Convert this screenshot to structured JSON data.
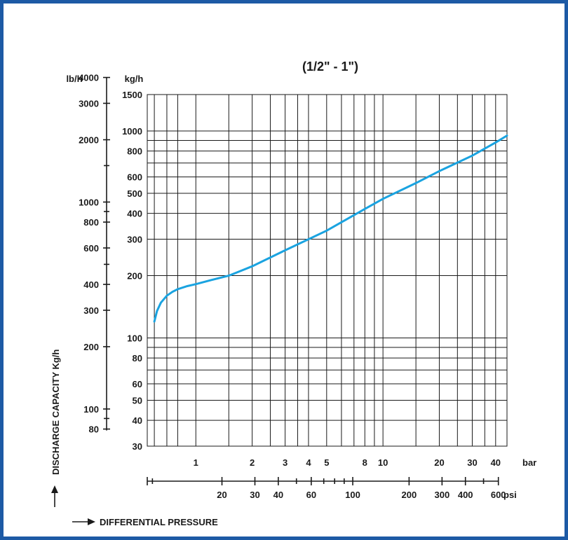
{
  "chart_data": {
    "type": "line",
    "title": "(1/2\" - 1\")",
    "ylabel": "DISCHARGE CAPACITY Kg/h",
    "xlabel": "DIFFERENTIAL PRESSURE",
    "y_unit_kg": "kg/h",
    "y_unit_lb": "lb/h",
    "x_unit_bar": "bar",
    "x_unit_psi": "psi",
    "x_scale": "log",
    "y_scale": "log",
    "xlim_bar": [
      0.55,
      46
    ],
    "ylim_kg": [
      30,
      1500
    ],
    "kg_ticks": [
      30,
      40,
      50,
      60,
      80,
      100,
      200,
      300,
      400,
      500,
      600,
      800,
      1000,
      1500
    ],
    "kg_tick_labels": [
      "30",
      "40",
      "50",
      "60",
      "80",
      "100",
      "200",
      "300",
      "400",
      "500",
      "600",
      "800",
      "1000",
      "1500"
    ],
    "kg_minor_lines": [
      70,
      90,
      700,
      900
    ],
    "lb_ticks": [
      80,
      100,
      200,
      300,
      400,
      600,
      800,
      1000,
      2000,
      3000,
      4000
    ],
    "lb_tick_labels": [
      "80",
      "100",
      "200",
      "300",
      "400",
      "600",
      "800",
      "1000",
      "2000",
      "3000",
      "4000"
    ],
    "lb_minor_ticks": [
      90,
      500,
      900,
      1500
    ],
    "bar_ticks": [
      1,
      2,
      3,
      4,
      5,
      8,
      10,
      20,
      30,
      40
    ],
    "bar_tick_labels": [
      "1",
      "2",
      "3",
      "4",
      "5",
      "8",
      "10",
      "20",
      "30",
      "40"
    ],
    "bar_grid_lines": [
      0.6,
      0.7,
      0.8,
      1,
      1.5,
      2,
      2.5,
      3,
      3.5,
      4,
      5,
      6,
      7,
      8,
      9,
      10,
      15,
      20,
      25,
      30,
      35,
      40
    ],
    "psi_ticks": [
      20,
      30,
      40,
      60,
      100,
      200,
      300,
      400,
      600
    ],
    "psi_tick_labels": [
      "20",
      "30",
      "40",
      "60",
      "100",
      "200",
      "300",
      "400",
      "600"
    ],
    "psi_minor_ticks": [
      8.5,
      50,
      70,
      80,
      90,
      500
    ],
    "grid": true,
    "series": [
      {
        "color": "#1aa3e0",
        "x": [
          0.6,
          0.62,
          0.65,
          0.7,
          0.75,
          0.8,
          0.9,
          1.0,
          1.2,
          1.5,
          2,
          3,
          5,
          8,
          10,
          15,
          20,
          30,
          40,
          46
        ],
        "y": [
          120,
          135,
          148,
          160,
          167,
          172,
          178,
          182,
          190,
          200,
          222,
          265,
          330,
          420,
          470,
          560,
          640,
          760,
          880,
          950
        ]
      }
    ]
  }
}
